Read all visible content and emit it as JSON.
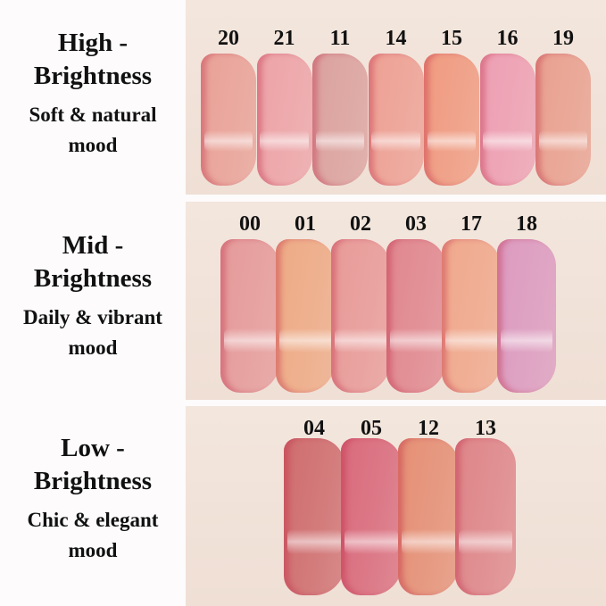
{
  "groups": [
    {
      "level": "High -",
      "brightness": "Brightness",
      "mood_line1": "Soft & natural",
      "mood_line2": "mood",
      "shades": [
        {
          "code": "20",
          "color": "#e9a197"
        },
        {
          "code": "21",
          "color": "#eda3a8"
        },
        {
          "code": "11",
          "color": "#dba19e"
        },
        {
          "code": "14",
          "color": "#eea094"
        },
        {
          "code": "15",
          "color": "#f09a80"
        },
        {
          "code": "16",
          "color": "#ee9fb3"
        },
        {
          "code": "19",
          "color": "#e9a08f"
        }
      ]
    },
    {
      "level": "Mid -",
      "brightness": "Brightness",
      "mood_line1": "Daily & vibrant",
      "mood_line2": "mood",
      "shades": [
        {
          "code": "00",
          "color": "#e59a9a"
        },
        {
          "code": "01",
          "color": "#eeaa85"
        },
        {
          "code": "02",
          "color": "#e89a98"
        },
        {
          "code": "03",
          "color": "#e0868e"
        },
        {
          "code": "17",
          "color": "#f0a88c"
        },
        {
          "code": "18",
          "color": "#dc9ac0"
        }
      ]
    },
    {
      "level": "Low -",
      "brightness": "Brightness",
      "mood_line1": "Chic & elegant",
      "mood_line2": "mood",
      "shades": [
        {
          "code": "04",
          "color": "#cf6c6e"
        },
        {
          "code": "05",
          "color": "#d96a7c"
        },
        {
          "code": "12",
          "color": "#e58f75"
        },
        {
          "code": "13",
          "color": "#de8589"
        }
      ]
    }
  ]
}
